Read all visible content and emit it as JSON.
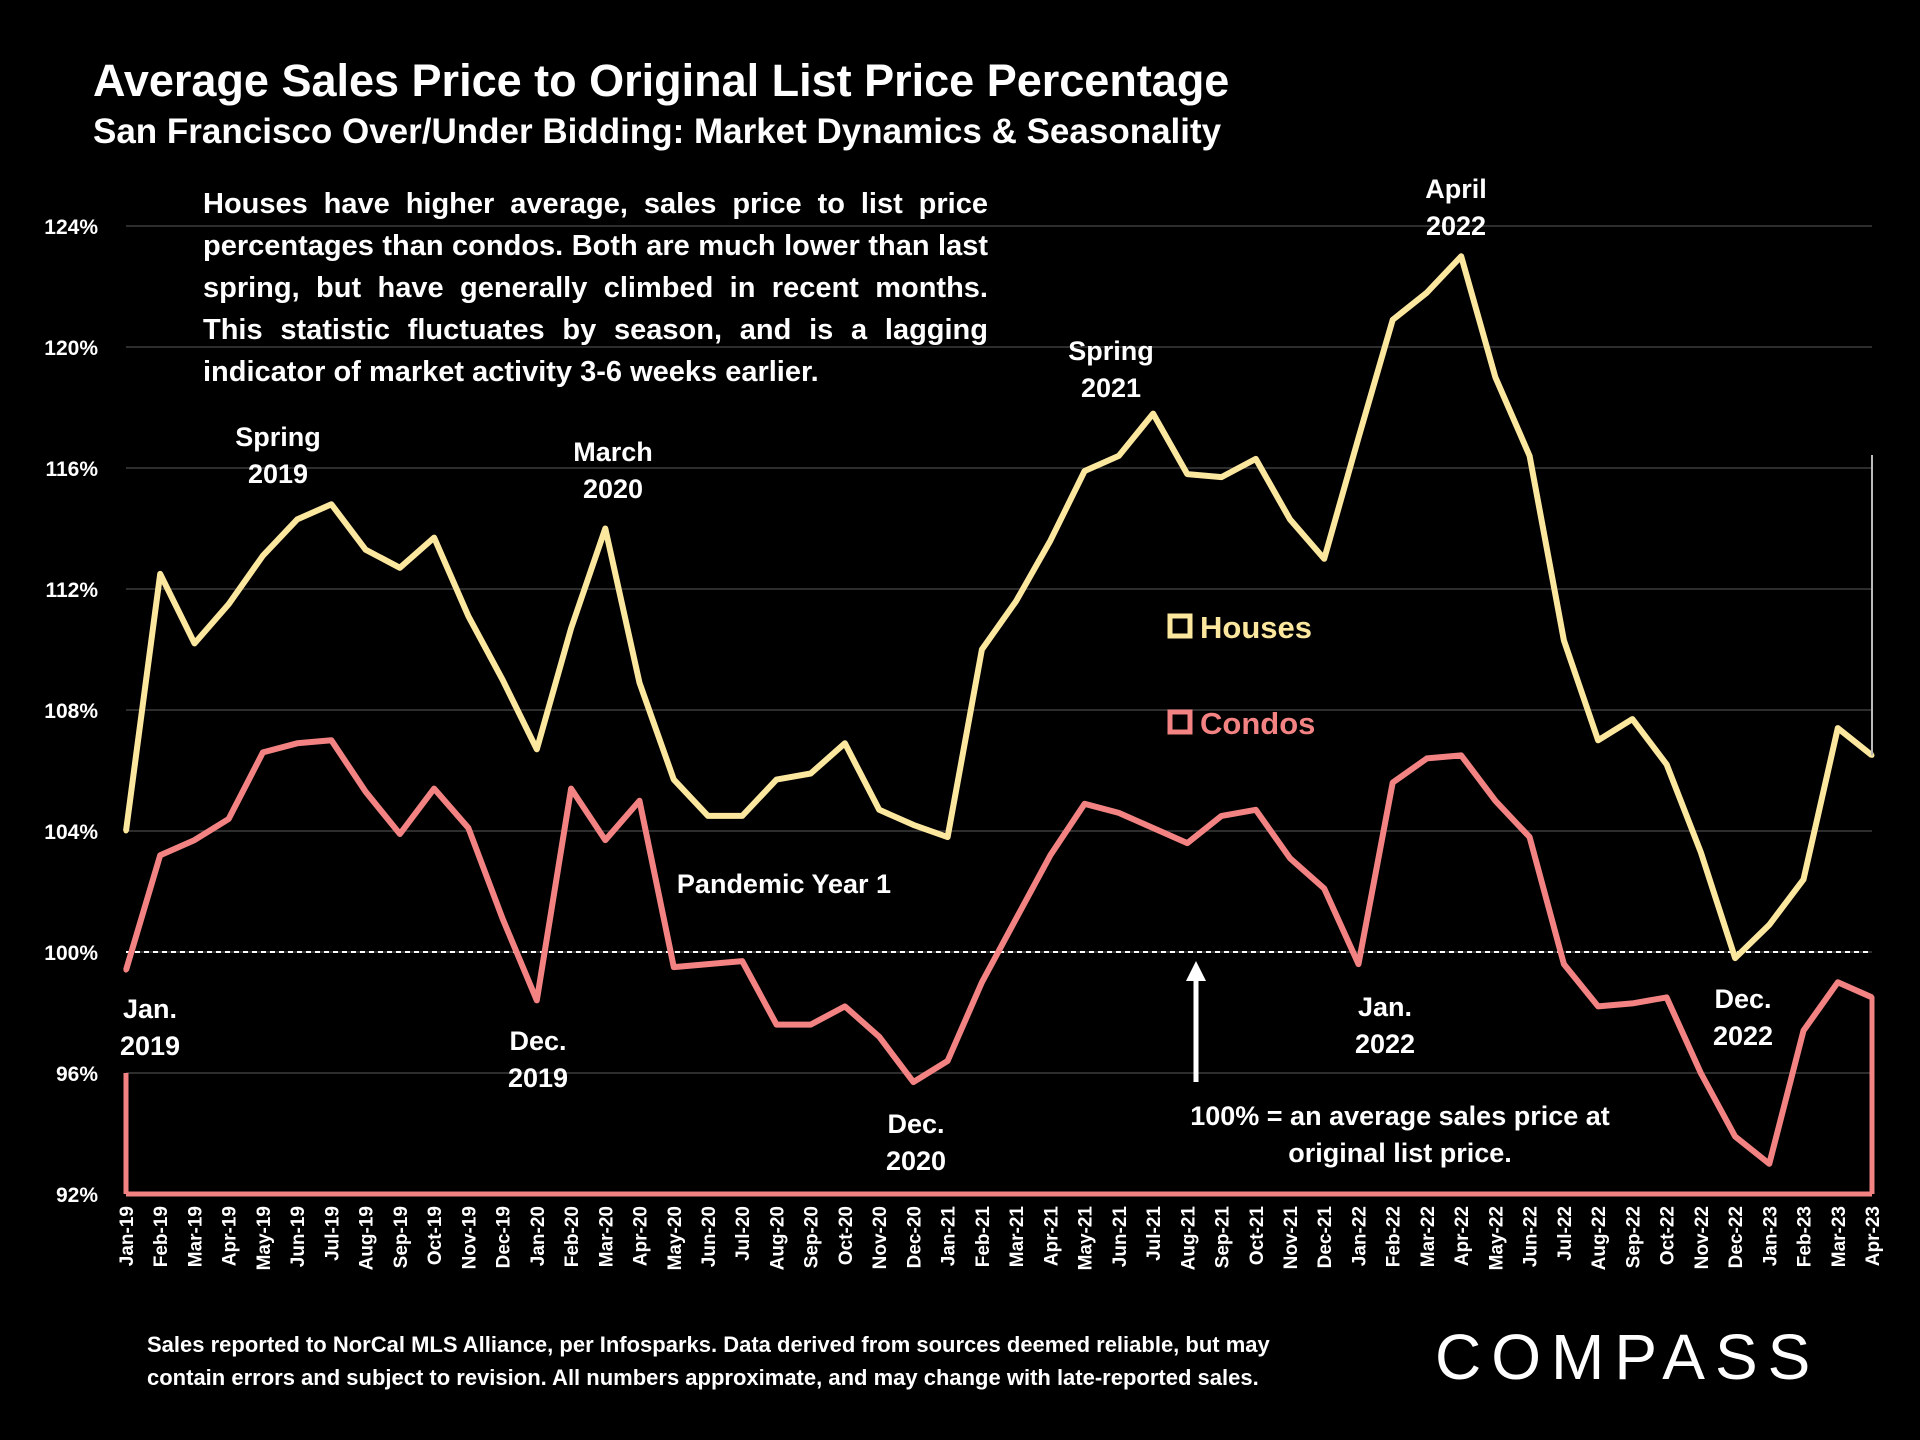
{
  "header": {
    "title": "Average Sales Price to Original List Price Percentage",
    "subtitle": "San Francisco Over/Under Bidding: Market Dynamics & Seasonality"
  },
  "note": "Houses have higher average, sales price to list price percentages than condos. Both are much lower than last spring, but have generally climbed in recent months. This statistic fluctuates by season, and is a lagging indicator of market activity 3-6 weeks earlier.",
  "footnote": "Sales reported to NorCal MLS Alliance, per Infosparks. Data derived from sources deemed reliable, but may\ncontain errors and subject to revision. All numbers approximate, and may change with late-reported sales.",
  "logo": "COMPASS",
  "chart_data": {
    "type": "line",
    "title": "Average Sales Price to Original List Price Percentage",
    "subtitle": "San Francisco Over/Under Bidding: Market Dynamics & Seasonality",
    "ylim": [
      92,
      124
    ],
    "yticks": [
      92,
      96,
      100,
      104,
      108,
      112,
      116,
      120,
      124
    ],
    "ytick_labels": [
      "92%",
      "96%",
      "100%",
      "104%",
      "108%",
      "112%",
      "116%",
      "120%",
      "124%"
    ],
    "grid": true,
    "legend_placement": "center",
    "reference_line": 100,
    "x": [
      "Jan-19",
      "Feb-19",
      "Mar-19",
      "Apr-19",
      "May-19",
      "Jun-19",
      "Jul-19",
      "Aug-19",
      "Sep-19",
      "Oct-19",
      "Nov-19",
      "Dec-19",
      "Jan-20",
      "Feb-20",
      "Mar-20",
      "Apr-20",
      "May-20",
      "Jun-20",
      "Jul-20",
      "Aug-20",
      "Sep-20",
      "Oct-20",
      "Nov-20",
      "Dec-20",
      "Jan-21",
      "Feb-21",
      "Mar-21",
      "Apr-21",
      "May-21",
      "Jun-21",
      "Jul-21",
      "Aug-21",
      "Sep-21",
      "Oct-21",
      "Nov-21",
      "Dec-21",
      "Jan-22",
      "Feb-22",
      "Mar-22",
      "Apr-22",
      "May-22",
      "Jun-22",
      "Jul-22",
      "Aug-22",
      "Sep-22",
      "Oct-22",
      "Nov-22",
      "Dec-22",
      "Jan-23",
      "Feb-23",
      "Mar-23",
      "Apr-23"
    ],
    "series": [
      {
        "name": "Houses",
        "color": "#fce79f",
        "values": [
          104.0,
          112.5,
          110.2,
          111.5,
          113.1,
          114.3,
          114.8,
          113.3,
          112.7,
          113.7,
          111.1,
          109.0,
          106.7,
          110.7,
          114.0,
          108.9,
          105.7,
          104.5,
          104.5,
          105.7,
          105.9,
          106.9,
          104.7,
          104.2,
          103.8,
          110.0,
          111.6,
          113.6,
          115.9,
          116.4,
          117.8,
          115.8,
          115.7,
          116.3,
          114.3,
          113.0,
          117.0,
          120.9,
          121.8,
          123.0,
          119.0,
          116.4,
          110.3,
          107.0,
          107.7,
          106.2,
          103.3,
          99.8,
          100.9,
          102.4,
          107.4,
          106.5
        ]
      },
      {
        "name": "Condos",
        "color": "#f38282",
        "values": [
          99.4,
          103.2,
          103.7,
          104.4,
          106.6,
          106.9,
          107.0,
          105.3,
          103.9,
          105.4,
          104.1,
          101.1,
          98.4,
          105.4,
          103.7,
          105.0,
          99.5,
          99.6,
          99.7,
          97.6,
          97.6,
          98.2,
          97.2,
          95.7,
          96.4,
          99.0,
          101.1,
          103.2,
          104.9,
          104.6,
          104.1,
          103.6,
          104.5,
          104.7,
          103.1,
          102.1,
          99.6,
          105.6,
          106.4,
          106.5,
          105.0,
          103.8,
          99.6,
          98.2,
          98.3,
          98.5,
          96.0,
          93.9,
          93.0,
          97.4,
          99.0,
          98.5
        ]
      }
    ],
    "annotations": [
      {
        "text": "Spring 2019",
        "lines": [
          "Spring",
          "2019"
        ]
      },
      {
        "text": "March 2020",
        "lines": [
          "March",
          "2020"
        ]
      },
      {
        "text": "Spring 2021",
        "lines": [
          "Spring",
          "2021"
        ]
      },
      {
        "text": "April 2022",
        "lines": [
          "April",
          "2022"
        ]
      },
      {
        "text": "Jan. 2019",
        "lines": [
          "Jan.",
          "2019"
        ]
      },
      {
        "text": "Dec. 2019",
        "lines": [
          "Dec.",
          "2019"
        ]
      },
      {
        "text": "Dec. 2020",
        "lines": [
          "Dec.",
          "2020"
        ]
      },
      {
        "text": "Jan. 2022",
        "lines": [
          "Jan.",
          "2022"
        ]
      },
      {
        "text": "Dec. 2022",
        "lines": [
          "Dec.",
          "2022"
        ]
      },
      {
        "text": "Pandemic Year 1",
        "lines": [
          "Pandemic Year 1"
        ]
      },
      {
        "text": "100% = an average sales price at original list price.",
        "lines": [
          "100% = an average sales price at",
          "original list price."
        ]
      }
    ]
  }
}
